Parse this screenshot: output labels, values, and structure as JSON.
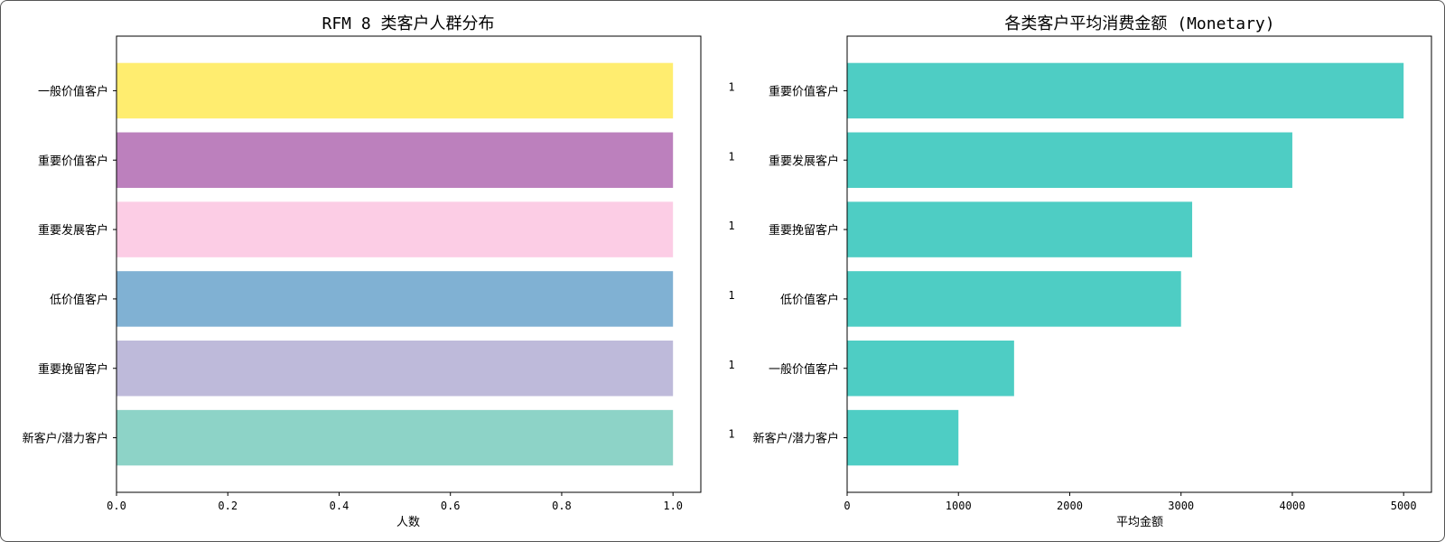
{
  "chart_data": [
    {
      "type": "bar",
      "orientation": "horizontal",
      "title": "RFM 8 类客户人群分布",
      "xlabel": "人数",
      "ylabel": "",
      "categories": [
        "一般价值客户",
        "重要价值客户",
        "重要发展客户",
        "低价值客户",
        "重要挽留客户",
        "新客户/潜力客户"
      ],
      "values": [
        1,
        1,
        1,
        1,
        1,
        1
      ],
      "colors": [
        "#ffed6f",
        "#bc80bd",
        "#fccde5",
        "#80b1d3",
        "#bebada",
        "#8dd3c7"
      ],
      "xlim": [
        0,
        1.05
      ],
      "xticks": [
        "0.0",
        "0.2",
        "0.4",
        "0.6",
        "0.8",
        "1.0"
      ],
      "xtick_values": [
        0,
        0.2,
        0.4,
        0.6,
        0.8,
        1.0
      ],
      "grid": false
    },
    {
      "type": "bar",
      "orientation": "horizontal",
      "title": "各类客户平均消费金额 (Monetary)",
      "xlabel": "平均金额",
      "ylabel": "",
      "categories": [
        "重要价值客户",
        "重要发展客户",
        "重要挽留客户",
        "低价值客户",
        "一般价值客户",
        "新客户/潜力客户"
      ],
      "values": [
        5000,
        4000,
        3100,
        3000,
        1500,
        1000
      ],
      "row_prefix_labels": [
        "1",
        "1",
        "1",
        "1",
        "1",
        "1"
      ],
      "color": "#4ecdc4",
      "xlim": [
        0,
        5250
      ],
      "xticks": [
        "0",
        "1000",
        "2000",
        "3000",
        "4000",
        "5000"
      ],
      "xtick_values": [
        0,
        1000,
        2000,
        3000,
        4000,
        5000
      ],
      "grid": false
    }
  ]
}
